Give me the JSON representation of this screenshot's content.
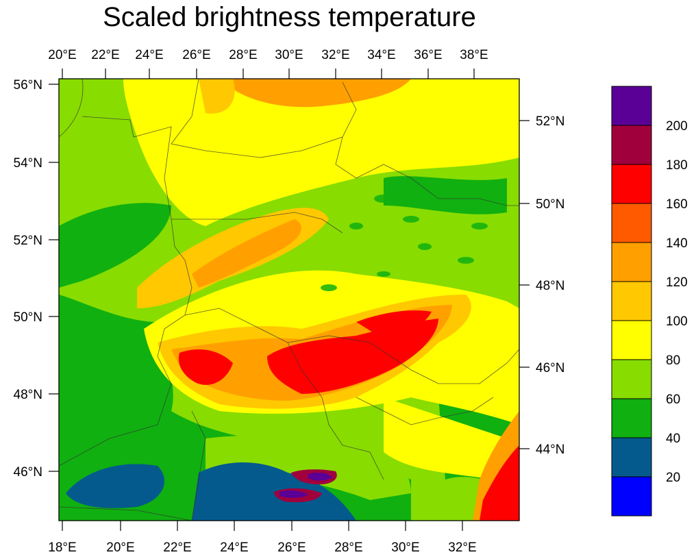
{
  "title": "Scaled brightness temperature",
  "top_axis_labels": [
    "20°E",
    "22°E",
    "24°E",
    "26°E",
    "28°E",
    "30°E",
    "32°E",
    "34°E",
    "36°E",
    "38°E"
  ],
  "bottom_axis_labels": [
    "18°E",
    "20°E",
    "22°E",
    "24°E",
    "26°E",
    "28°E",
    "30°E",
    "32°E"
  ],
  "left_axis_labels": [
    "56°N",
    "54°N",
    "52°N",
    "50°N",
    "48°N",
    "46°N"
  ],
  "right_axis_labels": [
    "52°N",
    "50°N",
    "48°N",
    "46°N",
    "44°N"
  ],
  "colorbar": {
    "labels": [
      "20",
      "40",
      "60",
      "80",
      "100",
      "120",
      "140",
      "160",
      "180",
      "200"
    ],
    "colors": [
      "#0000ff",
      "#045a8d",
      "#10b010",
      "#88dc00",
      "#ffff00",
      "#ffc800",
      "#ffa000",
      "#ff5a00",
      "#ff0000",
      "#a0003c",
      "#5a0096"
    ]
  },
  "field_colors": {
    "green": "#10b010",
    "lightgreen": "#88dc00",
    "yellow": "#ffff00",
    "gold": "#ffc800",
    "orange": "#ffa000",
    "darkorange": "#ff5a00",
    "red": "#ff0000",
    "crimson": "#a0003c",
    "purple": "#5a0096",
    "navy": "#045a8d"
  }
}
